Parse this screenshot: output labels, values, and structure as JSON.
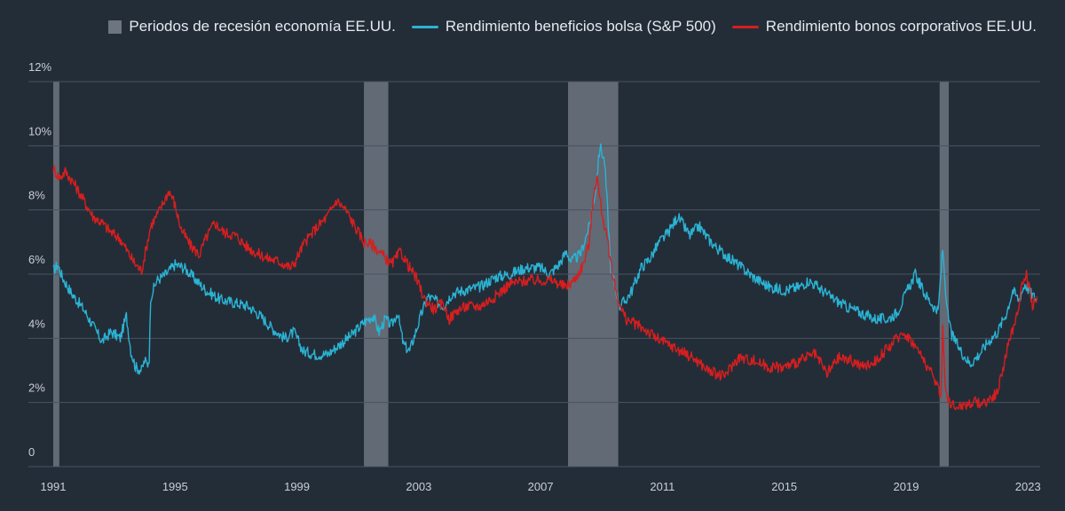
{
  "chart_data": {
    "type": "line",
    "x_range": [
      1991,
      2023.4
    ],
    "y_ticks": [
      0,
      2,
      4,
      6,
      8,
      10,
      12
    ],
    "ylim": [
      0,
      12
    ],
    "grid": true,
    "legend_position": "top-right",
    "y_tick_labels": [
      "0",
      "2%",
      "4%",
      "6%",
      "8%",
      "10%",
      "12%"
    ],
    "x_ticks": [
      1991,
      1995,
      1999,
      2003,
      2007,
      2011,
      2015,
      2019,
      2023
    ],
    "x_tick_labels": [
      "1991",
      "1995",
      "1999",
      "2003",
      "2007",
      "2011",
      "2015",
      "2019",
      "2023"
    ],
    "recessions": [
      {
        "start": 1990.9,
        "end": 1991.2
      },
      {
        "start": 2001.2,
        "end": 2002.0
      },
      {
        "start": 2007.9,
        "end": 2009.55
      },
      {
        "start": 2020.1,
        "end": 2020.4
      }
    ],
    "series": [
      {
        "name": "Rendimiento beneficios bolsa (S&P 500)",
        "color": "#2bb3d4",
        "x": [
          1991.0,
          1991.15,
          1991.3,
          1991.6,
          1992.0,
          1992.3,
          1992.6,
          1992.9,
          1993.2,
          1993.4,
          1993.55,
          1993.7,
          1993.9,
          1994.0,
          1994.1,
          1994.15,
          1994.2,
          1994.4,
          1994.7,
          1995.0,
          1995.3,
          1995.6,
          1996.0,
          1996.5,
          1997.0,
          1997.4,
          1997.8,
          1998.2,
          1998.6,
          1998.9,
          1999.2,
          1999.6,
          2000.0,
          2000.4,
          2000.8,
          2001.2,
          2001.5,
          2001.7,
          2001.9,
          2002.1,
          2002.3,
          2002.5,
          2002.7,
          2002.9,
          2003.1,
          2003.3,
          2003.5,
          2003.8,
          2004.1,
          2004.5,
          2005.0,
          2005.5,
          2006.0,
          2006.5,
          2007.0,
          2007.3,
          2007.6,
          2007.85,
          2008.0,
          2008.3,
          2008.6,
          2008.8,
          2008.95,
          2009.1,
          2009.2,
          2009.3,
          2009.45,
          2009.6,
          2009.8,
          2010.0,
          2010.3,
          2010.6,
          2010.9,
          2011.2,
          2011.5,
          2011.7,
          2011.9,
          2012.2,
          2012.5,
          2012.8,
          2013.2,
          2013.6,
          2014.0,
          2014.5,
          2015.0,
          2015.5,
          2015.8,
          2016.1,
          2016.5,
          2017.0,
          2017.5,
          2018.0,
          2018.4,
          2018.7,
          2019.0,
          2019.3,
          2019.6,
          2019.9,
          2020.05,
          2020.2,
          2020.35,
          2020.5,
          2020.8,
          2021.1,
          2021.4,
          2021.7,
          2022.0,
          2022.3,
          2022.5,
          2022.7,
          2022.9,
          2023.1,
          2023.3
        ],
        "values": [
          6.1,
          6.3,
          5.9,
          5.4,
          4.9,
          4.4,
          3.9,
          4.2,
          4.0,
          4.7,
          3.6,
          3.1,
          3.0,
          3.3,
          3.2,
          3.4,
          5.3,
          5.8,
          6.0,
          6.3,
          6.2,
          5.9,
          5.5,
          5.2,
          5.1,
          5.0,
          4.7,
          4.3,
          4.0,
          4.2,
          3.6,
          3.5,
          3.5,
          3.8,
          4.1,
          4.5,
          4.7,
          4.2,
          4.6,
          4.4,
          4.8,
          3.8,
          3.6,
          4.2,
          4.8,
          5.3,
          5.2,
          5.0,
          5.4,
          5.5,
          5.6,
          5.9,
          6.0,
          6.2,
          6.2,
          6.0,
          6.3,
          6.7,
          6.4,
          6.6,
          7.5,
          8.6,
          10.0,
          9.5,
          8.0,
          6.2,
          5.6,
          5.0,
          5.2,
          5.5,
          6.2,
          6.5,
          7.0,
          7.3,
          7.8,
          7.5,
          7.2,
          7.5,
          7.1,
          6.8,
          6.5,
          6.2,
          5.9,
          5.6,
          5.5,
          5.6,
          5.8,
          5.6,
          5.3,
          5.0,
          4.8,
          4.6,
          4.6,
          4.8,
          5.4,
          6.0,
          5.4,
          5.0,
          4.8,
          6.8,
          4.8,
          4.1,
          3.6,
          3.2,
          3.5,
          3.9,
          4.2,
          4.8,
          5.5,
          5.2,
          5.7,
          5.4,
          5.2
        ]
      },
      {
        "name": "Rendimiento bonos corporativos EE.UU.",
        "color": "#d81e1e",
        "x": [
          1991.0,
          1991.2,
          1991.4,
          1991.7,
          1992.0,
          1992.3,
          1992.6,
          1992.9,
          1993.2,
          1993.5,
          1993.7,
          1993.9,
          1994.2,
          1994.5,
          1994.8,
          1994.95,
          1995.2,
          1995.5,
          1995.8,
          1996.0,
          1996.3,
          1996.6,
          1997.0,
          1997.3,
          1997.6,
          1998.0,
          1998.4,
          1998.8,
          1998.95,
          1999.2,
          1999.6,
          2000.0,
          2000.3,
          2000.6,
          2000.9,
          2001.2,
          2001.5,
          2001.8,
          2002.1,
          2002.4,
          2002.7,
          2002.9,
          2003.2,
          2003.5,
          2003.8,
          2004.0,
          2004.3,
          2004.6,
          2005.0,
          2005.5,
          2006.0,
          2006.5,
          2007.0,
          2007.4,
          2007.8,
          2008.1,
          2008.4,
          2008.6,
          2008.75,
          2008.85,
          2009.0,
          2009.2,
          2009.4,
          2009.6,
          2009.8,
          2010.0,
          2010.4,
          2010.8,
          2011.2,
          2011.6,
          2012.0,
          2012.5,
          2013.0,
          2013.5,
          2014.0,
          2014.5,
          2015.0,
          2015.5,
          2016.0,
          2016.4,
          2016.8,
          2017.2,
          2017.6,
          2018.0,
          2018.5,
          2018.9,
          2019.2,
          2019.6,
          2020.0,
          2020.15,
          2020.2,
          2020.3,
          2020.5,
          2020.8,
          2021.2,
          2021.6,
          2022.0,
          2022.3,
          2022.6,
          2022.8,
          2022.95,
          2023.15,
          2023.3
        ],
        "values": [
          9.3,
          9.0,
          9.2,
          8.8,
          8.3,
          7.8,
          7.6,
          7.3,
          7.1,
          6.6,
          6.3,
          6.1,
          7.5,
          8.0,
          8.6,
          8.3,
          7.4,
          6.9,
          6.6,
          7.1,
          7.6,
          7.3,
          7.2,
          6.9,
          6.7,
          6.5,
          6.4,
          6.2,
          6.4,
          6.9,
          7.4,
          7.8,
          8.3,
          8.0,
          7.5,
          7.0,
          6.9,
          6.6,
          6.3,
          6.7,
          6.2,
          5.9,
          5.2,
          4.9,
          5.1,
          4.6,
          4.9,
          5.0,
          5.0,
          5.3,
          5.7,
          5.8,
          5.8,
          5.8,
          5.6,
          5.8,
          6.3,
          7.0,
          8.6,
          9.0,
          8.0,
          7.0,
          5.8,
          5.0,
          4.6,
          4.5,
          4.3,
          4.0,
          3.8,
          3.6,
          3.4,
          3.0,
          2.8,
          3.4,
          3.3,
          3.1,
          3.1,
          3.3,
          3.5,
          2.9,
          3.4,
          3.3,
          3.1,
          3.3,
          3.8,
          4.2,
          3.9,
          3.3,
          2.6,
          2.2,
          4.4,
          2.3,
          1.9,
          1.9,
          2.0,
          2.0,
          2.3,
          3.6,
          4.6,
          5.6,
          6.0,
          5.0,
          5.3
        ]
      }
    ]
  },
  "legend": {
    "recession_label": "Periodos de recesión economía EE.UU.",
    "recession_color": "#6c7580",
    "equity_label": "Rendimiento beneficios bolsa (S&P 500)",
    "equity_color": "#2bb3d4",
    "bond_label": "Rendimiento bonos corporativos EE.UU.",
    "bond_color": "#d81e1e"
  }
}
